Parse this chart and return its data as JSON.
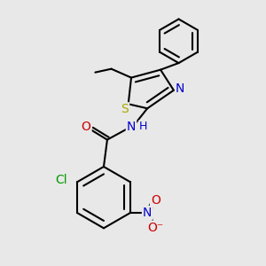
{
  "bg_color": "#e8e8e8",
  "bond_color": "#000000",
  "bond_width": 1.5,
  "atom_colors": {
    "S": "#aaaa00",
    "N": "#0000cc",
    "O": "#cc0000",
    "Cl": "#009900",
    "H": "#0000cc",
    "C": "#000000"
  },
  "font_size": 10
}
